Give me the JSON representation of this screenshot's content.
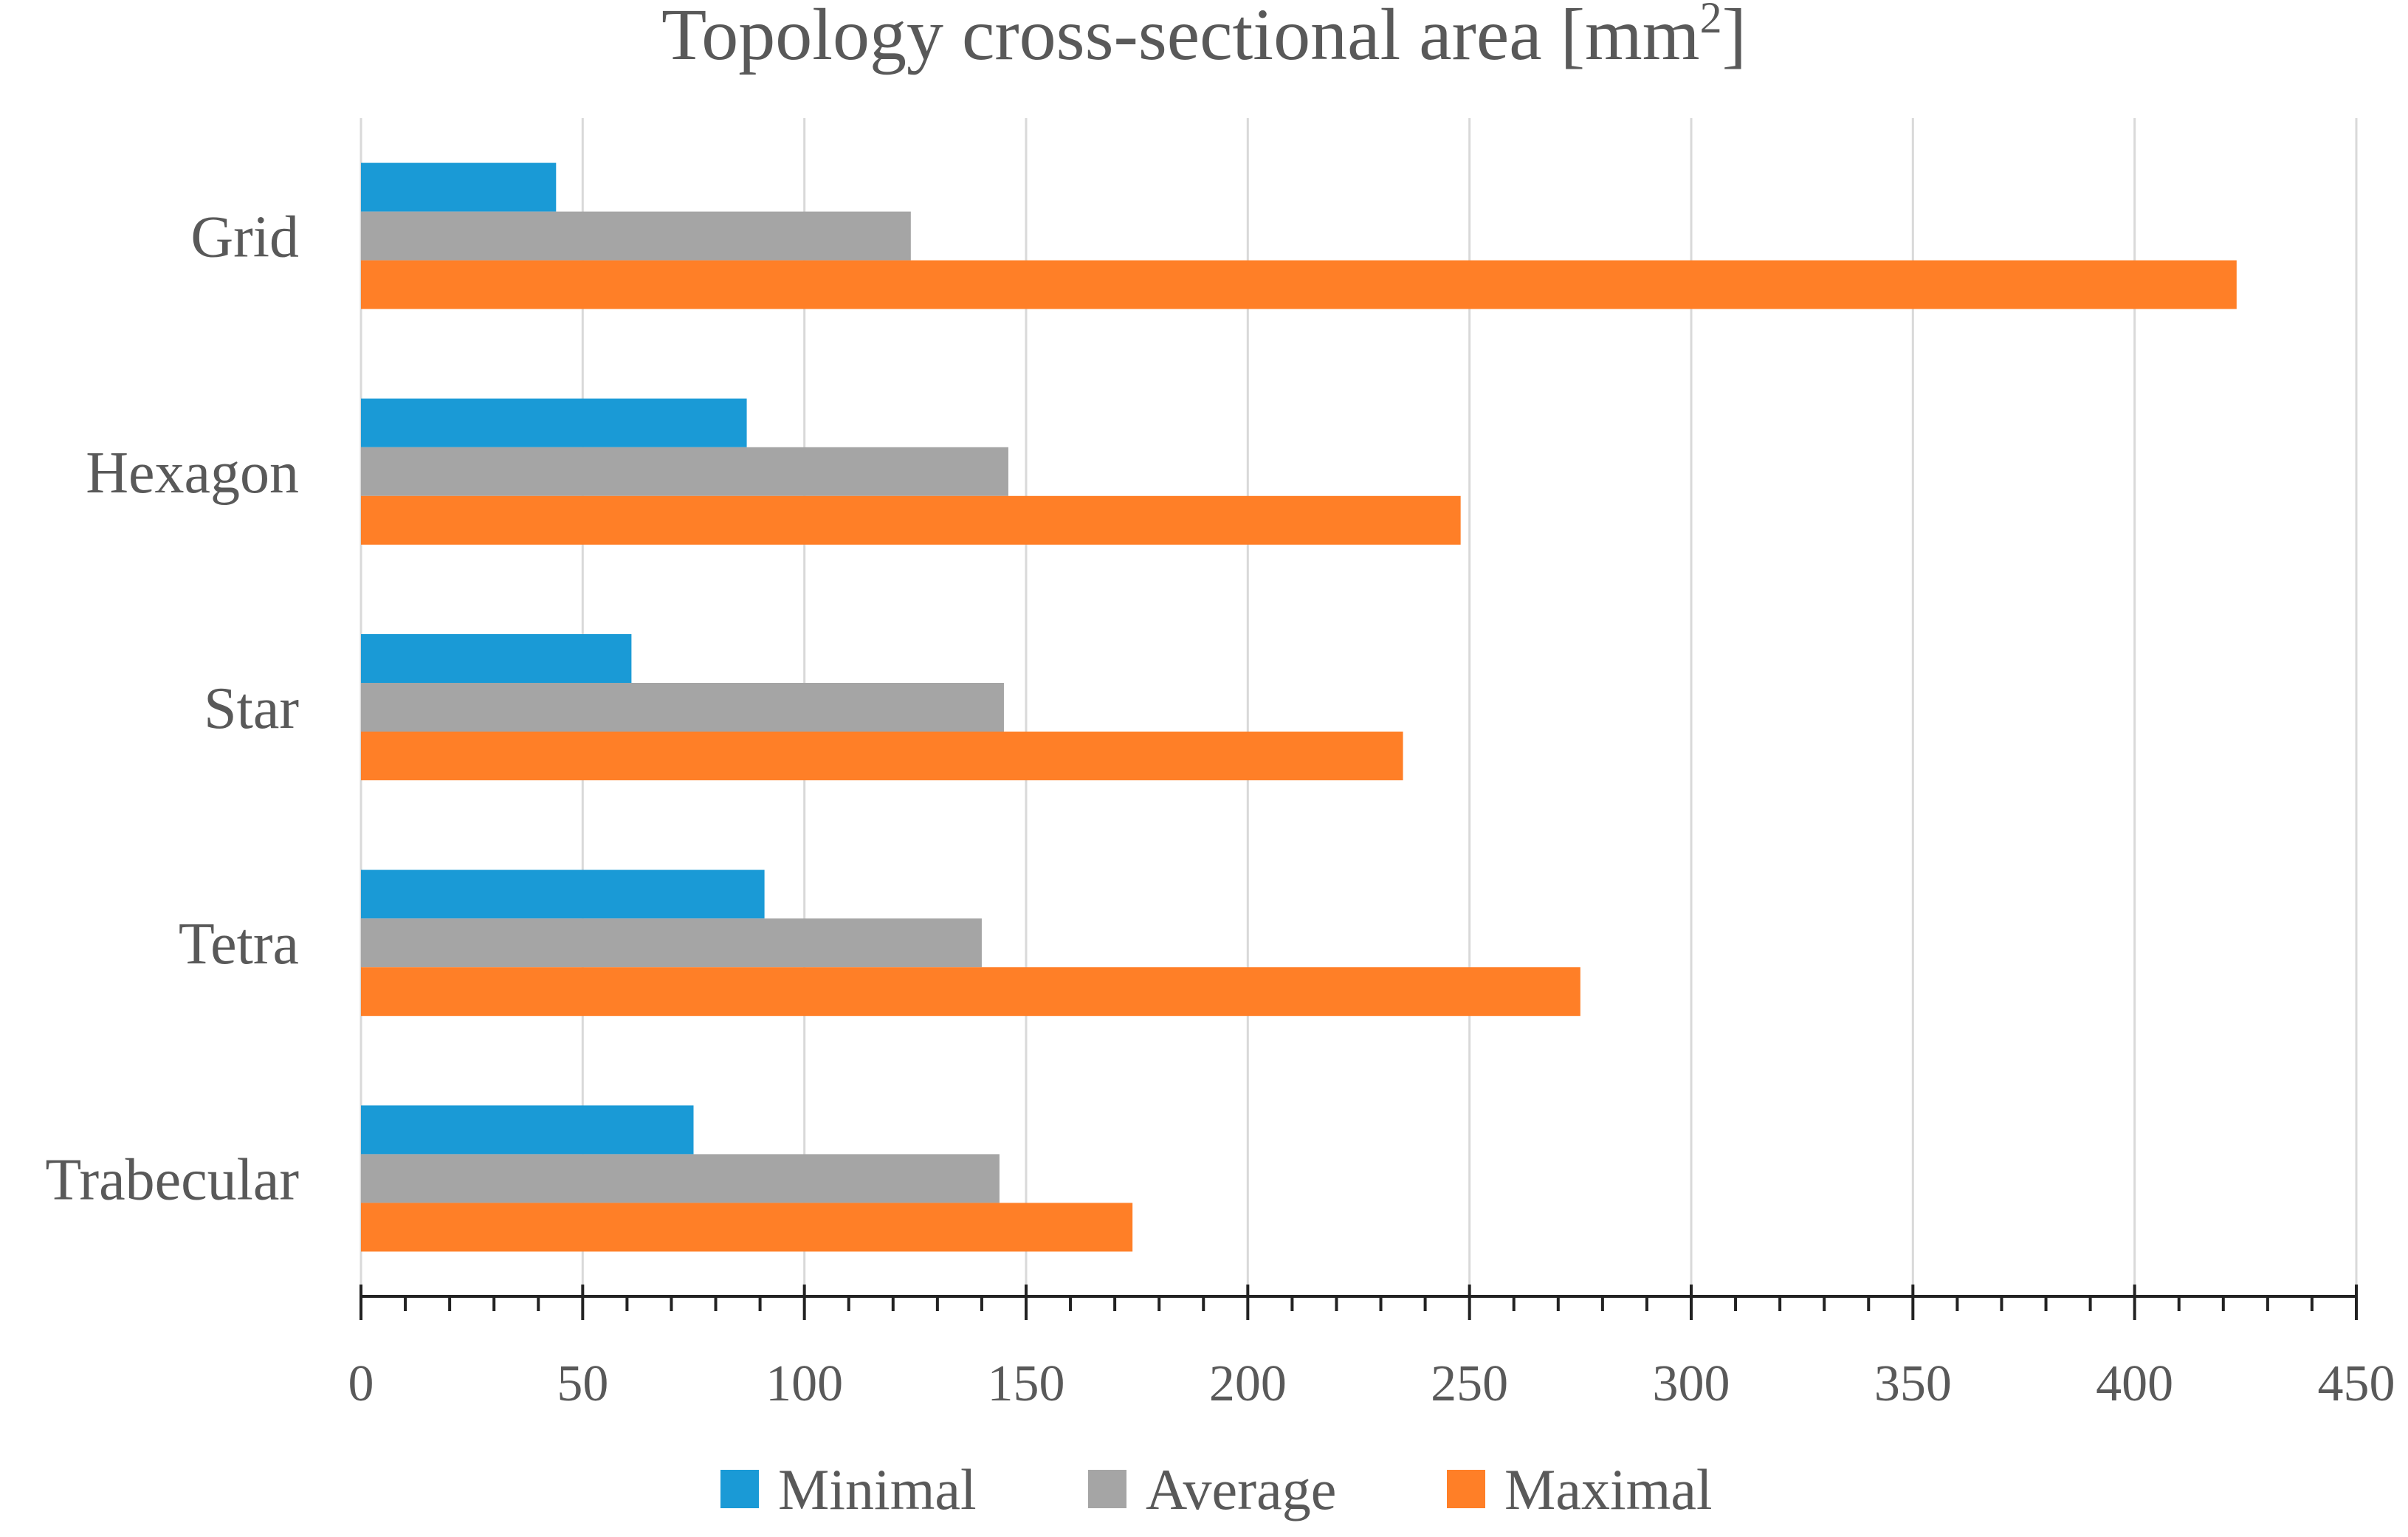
{
  "chart_data": {
    "type": "bar",
    "orientation": "horizontal",
    "title_main": "Topology cross-sectional area [mm",
    "title_sup": "2",
    "title_close": "]",
    "categories": [
      "Grid",
      "Hexagon",
      "Star",
      "Tetra",
      "Trabecular"
    ],
    "series": [
      {
        "name": "Minimal",
        "color": "#1a9ad6",
        "values": [
          44,
          87,
          61,
          91,
          75
        ]
      },
      {
        "name": "Average",
        "color": "#a5a5a5",
        "values": [
          124,
          146,
          145,
          140,
          144
        ]
      },
      {
        "name": "Maximal",
        "color": "#ff7f27",
        "values": [
          423,
          248,
          235,
          275,
          174
        ]
      }
    ],
    "xlim": [
      0,
      450
    ],
    "major_ticks": [
      0,
      50,
      100,
      150,
      200,
      250,
      300,
      350,
      400,
      450
    ],
    "minor_tick_step": 10,
    "xlabel": "",
    "ylabel": "",
    "grid": "vertical",
    "legend_position": "bottom"
  }
}
